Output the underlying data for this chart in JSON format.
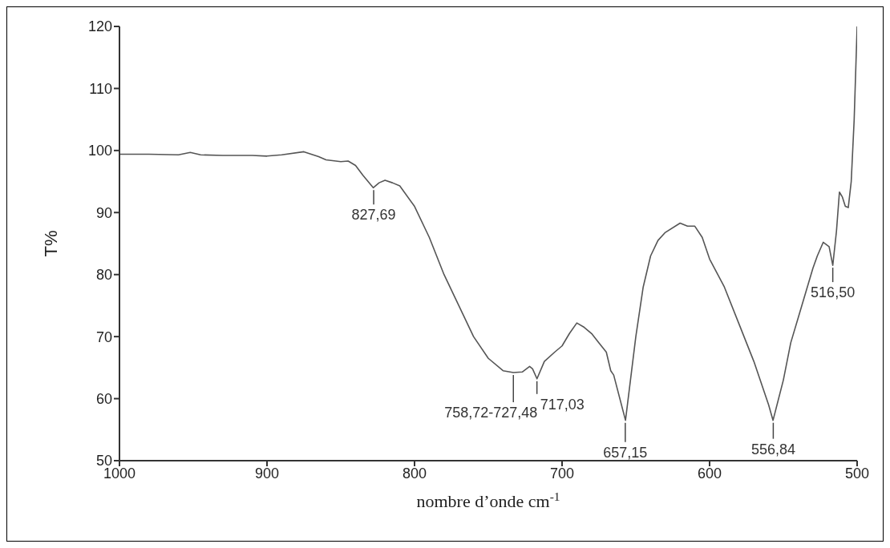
{
  "chart_data": {
    "type": "line",
    "xlabel": "nombre d’onde cm$^{-1}$",
    "ylabel": "T%",
    "xlim": [
      1000,
      500
    ],
    "xticks": [
      1000,
      900,
      800,
      700,
      600,
      500
    ],
    "ylim": [
      50,
      120
    ],
    "yticks": [
      50,
      60,
      70,
      80,
      90,
      100,
      110,
      120
    ],
    "grid": false,
    "legend": false,
    "marker": "none",
    "line_style": "solid",
    "series": [
      {
        "color": "#555555",
        "x": [
          1000,
          980,
          960,
          952,
          945,
          930,
          910,
          900,
          890,
          875,
          865,
          860,
          850,
          845,
          840,
          835,
          828,
          824,
          820,
          815,
          810,
          800,
          790,
          780,
          770,
          760,
          750,
          740,
          733,
          727,
          722,
          720,
          717,
          712,
          705,
          700,
          695,
          690,
          685,
          680,
          675,
          670,
          667,
          665,
          657,
          650,
          645,
          640,
          635,
          630,
          620,
          615,
          610,
          605,
          600,
          590,
          580,
          570,
          560,
          557,
          550,
          545,
          540,
          535,
          530,
          527,
          523,
          519,
          516.5,
          514,
          512,
          510,
          508,
          506,
          504,
          502,
          500
        ],
        "values": [
          99.4,
          99.4,
          99.3,
          99.7,
          99.3,
          99.2,
          99.2,
          99.1,
          99.3,
          99.8,
          99.0,
          98.5,
          98.2,
          98.3,
          97.6,
          96,
          94,
          94.8,
          95.2,
          94.8,
          94.3,
          91,
          86,
          80,
          75,
          70,
          66.5,
          64.5,
          64.2,
          64.3,
          65.2,
          64.8,
          63.2,
          66,
          67.5,
          68.5,
          70.5,
          72.2,
          71.5,
          70.5,
          69,
          67.5,
          64.5,
          63.8,
          56.5,
          70,
          78,
          83,
          85.5,
          86.8,
          88.3,
          87.8,
          87.8,
          86,
          82.5,
          78,
          72,
          66,
          59,
          56.5,
          63,
          69,
          73,
          77,
          81,
          83,
          85.2,
          84.5,
          81.5,
          87,
          93.3,
          92.5,
          91,
          90.8,
          95,
          105,
          120
        ]
      }
    ],
    "annotations": [
      {
        "text": "827,69",
        "x": 827.69,
        "y": 94
      },
      {
        "text": "758,72-727,48",
        "x": 733,
        "y": 64.2
      },
      {
        "text": "717,03",
        "x": 717.03,
        "y": 63.2
      },
      {
        "text": "657,15",
        "x": 657.15,
        "y": 56.5
      },
      {
        "text": "556,84",
        "x": 556.84,
        "y": 56.5
      },
      {
        "text": "516,50",
        "x": 516.5,
        "y": 81.5
      }
    ]
  }
}
